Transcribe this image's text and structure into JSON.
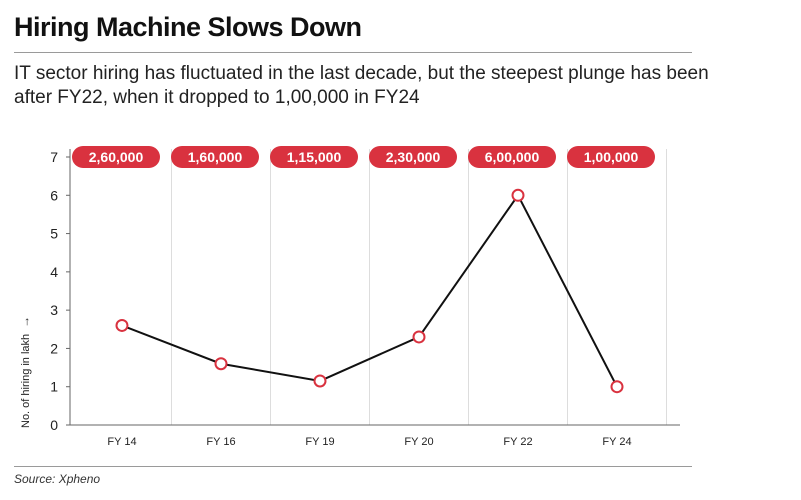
{
  "header": {
    "title": "Hiring Machine Slows Down",
    "subtitle": "IT sector hiring has fluctuated in the last decade, but the steepest plunge has been after FY22, when it dropped to 1,00,000 in FY24"
  },
  "footer": {
    "source": "Source: Xpheno"
  },
  "colors": {
    "accent": "#d9323f",
    "line": "#111111",
    "grid": "#dddddd",
    "axis": "#666666"
  },
  "chart_data": {
    "type": "line",
    "title": "Hiring Machine Slows Down",
    "xlabel": "",
    "ylabel": "No. of hiring in lakh",
    "ylabel_arrow": "→",
    "categories": [
      "FY 14",
      "FY 16",
      "FY 19",
      "FY 20",
      "FY 22",
      "FY 24"
    ],
    "series": [
      {
        "values": [
          2.6,
          1.6,
          1.15,
          2.3,
          6.0,
          1.0
        ]
      }
    ],
    "data_labels": [
      "2,60,000",
      "1,60,000",
      "1,15,000",
      "2,30,000",
      "6,00,000",
      "1,00,000"
    ],
    "ylim": [
      0,
      7
    ],
    "yticks": [
      0,
      1,
      2,
      3,
      4,
      5,
      6,
      7
    ],
    "grid": true,
    "legend": "none"
  }
}
